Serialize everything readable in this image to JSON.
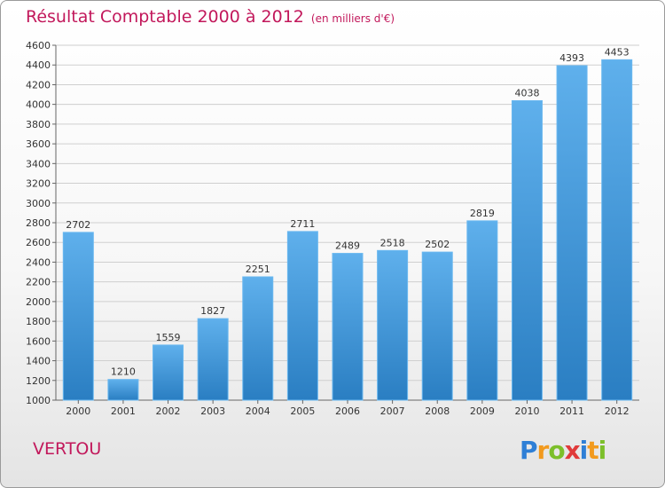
{
  "chart_data": {
    "type": "bar",
    "title": "Résultat Comptable 2000 à 2012",
    "subtitle": "(en milliers d'€)",
    "categories": [
      "2000",
      "2001",
      "2002",
      "2003",
      "2004",
      "2005",
      "2006",
      "2007",
      "2008",
      "2009",
      "2010",
      "2011",
      "2012"
    ],
    "values": [
      2702,
      1210,
      1559,
      1827,
      2251,
      2711,
      2489,
      2518,
      2502,
      2819,
      4038,
      4393,
      4453
    ],
    "ylim": [
      1000,
      4600
    ],
    "yticks": [
      1000,
      1200,
      1400,
      1600,
      1800,
      2000,
      2200,
      2400,
      2600,
      2800,
      3000,
      3200,
      3400,
      3600,
      3800,
      4000,
      4200,
      4400,
      4600
    ],
    "grid": true,
    "xlabel": "",
    "ylabel": ""
  },
  "place": "VERTOU",
  "logo": {
    "letters": [
      "P",
      "r",
      "o",
      "x",
      "i",
      "t",
      "i"
    ],
    "colors": [
      "#2e7fd6",
      "#f29a1e",
      "#7cbf2a",
      "#e03a3a",
      "#2e7fd6",
      "#f29a1e",
      "#7cbf2a"
    ]
  },
  "colors": {
    "title": "#c2185b",
    "bar_top": "#5fb0ec",
    "bar_bottom": "#2a7ec2",
    "grid": "#cfcfcf"
  }
}
